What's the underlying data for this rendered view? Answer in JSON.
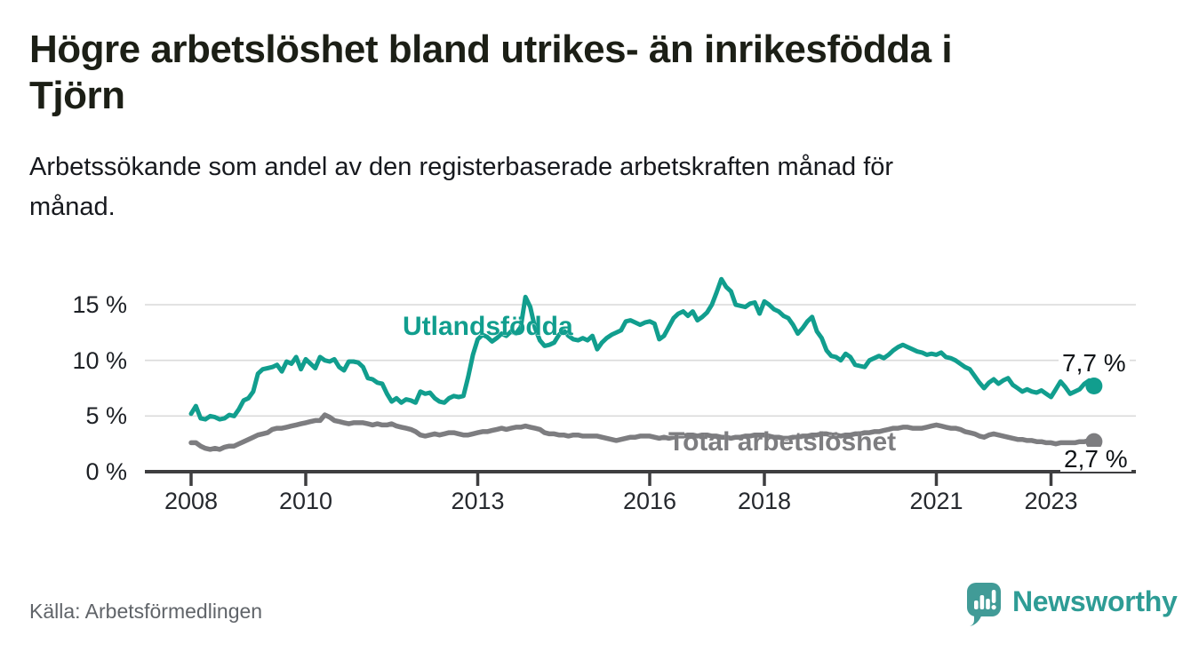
{
  "header": {
    "title_lines": [
      "Högre arbetslöshet bland utrikes- än inrikesfödda i",
      "Tjörn"
    ],
    "subtitle_lines": [
      "Arbetssökande som andel av den registerbaserade arbetskraften månad för",
      "månad."
    ]
  },
  "footer": {
    "source": "Källa: Arbetsförmedlingen",
    "brand": "Newsworthy",
    "logo_icon": "bar-chart-speech-bubble"
  },
  "colors": {
    "foreign_born_line": "#119E8E",
    "total_line": "#7D7D80",
    "grid": "#DBDBDB",
    "axis": "#3E3E40",
    "value_label_text": "#101418",
    "brand_icon_teal": "#419B97",
    "brand_text_teal": "#2E9C95"
  },
  "chart_data": {
    "type": "line",
    "title": "Högre arbetslöshet bland utrikes- än inrikesfödda i Tjörn",
    "subtitle": "Arbetssökande som andel av den registerbaserade arbetskraften månad för månad.",
    "unit": "%",
    "x_start": 2008.0,
    "x_step_years": 0.0833333,
    "xlim": [
      2008,
      2023.83
    ],
    "ylim": [
      0,
      18
    ],
    "grid": "horizontal",
    "grid_values": [
      5,
      10,
      15
    ],
    "legend_position": "inline-labels",
    "x_ticks": [
      2008,
      2010,
      2013,
      2016,
      2018,
      2021,
      2023
    ],
    "y_ticks": [
      {
        "value": 0,
        "label": "0 %"
      },
      {
        "value": 5,
        "label": "5 %"
      },
      {
        "value": 10,
        "label": "10 %"
      },
      {
        "value": 15,
        "label": "15 %"
      }
    ],
    "series": [
      {
        "name": "Utlandsfödda",
        "color": "#119E8E",
        "end_label": "7,7 %",
        "end_value": 7.7,
        "values": [
          5.2,
          5.9,
          4.8,
          4.7,
          5.0,
          4.9,
          4.7,
          4.8,
          5.1,
          5.0,
          5.6,
          6.4,
          6.6,
          7.2,
          8.8,
          9.2,
          9.3,
          9.4,
          9.6,
          9.0,
          9.9,
          9.7,
          10.3,
          9.2,
          10.1,
          9.7,
          9.3,
          10.3,
          10.0,
          9.9,
          10.1,
          9.4,
          9.1,
          9.9,
          9.9,
          9.8,
          9.4,
          8.4,
          8.3,
          8.0,
          7.9,
          7.0,
          6.3,
          6.6,
          6.2,
          6.5,
          6.4,
          6.2,
          7.2,
          7.0,
          7.1,
          6.6,
          6.3,
          6.2,
          6.6,
          6.8,
          6.7,
          6.8,
          8.5,
          10.5,
          11.9,
          12.3,
          12.1,
          11.7,
          12.0,
          12.4,
          12.2,
          12.6,
          12.4,
          13.0,
          15.7,
          14.8,
          12.9,
          11.8,
          11.3,
          11.4,
          11.6,
          12.3,
          12.7,
          12.2,
          11.9,
          11.8,
          12.0,
          11.8,
          12.2,
          11.0,
          11.6,
          12.0,
          12.3,
          12.5,
          12.7,
          13.5,
          13.6,
          13.4,
          13.2,
          13.4,
          13.5,
          13.3,
          11.9,
          12.2,
          13.0,
          13.8,
          14.2,
          14.4,
          14.0,
          14.4,
          13.6,
          13.9,
          14.3,
          15.0,
          16.1,
          17.3,
          16.6,
          16.2,
          15.0,
          14.9,
          14.8,
          15.1,
          15.2,
          14.2,
          15.3,
          15.0,
          14.6,
          14.4,
          14.0,
          13.8,
          13.2,
          12.4,
          12.9,
          13.5,
          13.9,
          12.6,
          12.0,
          10.9,
          10.4,
          10.3,
          10.0,
          10.6,
          10.3,
          9.6,
          9.5,
          9.4,
          10.0,
          10.2,
          10.4,
          10.2,
          10.5,
          10.9,
          11.2,
          11.4,
          11.2,
          11.0,
          10.8,
          10.7,
          10.5,
          10.6,
          10.5,
          10.7,
          10.3,
          10.2,
          10.0,
          9.7,
          9.4,
          9.2,
          8.6,
          8.0,
          7.5,
          8.0,
          8.3,
          7.9,
          8.2,
          8.4,
          7.8,
          7.5,
          7.2,
          7.4,
          7.2,
          7.1,
          7.3,
          7.0,
          6.7,
          7.4,
          8.1,
          7.6,
          7.0,
          7.2,
          7.4,
          7.9,
          8.2,
          7.7
        ]
      },
      {
        "name": "Total arbetslöshet",
        "color": "#7D7D80",
        "end_label": "2,7 %",
        "end_value": 2.7,
        "values": [
          2.6,
          2.6,
          2.3,
          2.1,
          2.0,
          2.1,
          2.0,
          2.2,
          2.3,
          2.3,
          2.5,
          2.7,
          2.9,
          3.1,
          3.3,
          3.4,
          3.5,
          3.8,
          3.9,
          3.9,
          4.0,
          4.1,
          4.2,
          4.3,
          4.4,
          4.5,
          4.6,
          4.6,
          5.1,
          4.9,
          4.6,
          4.5,
          4.4,
          4.3,
          4.4,
          4.4,
          4.4,
          4.3,
          4.2,
          4.3,
          4.2,
          4.2,
          4.3,
          4.1,
          4.0,
          3.9,
          3.8,
          3.6,
          3.3,
          3.2,
          3.3,
          3.4,
          3.3,
          3.4,
          3.5,
          3.5,
          3.4,
          3.3,
          3.3,
          3.4,
          3.5,
          3.6,
          3.6,
          3.7,
          3.8,
          3.9,
          3.8,
          3.9,
          4.0,
          4.0,
          4.1,
          4.0,
          3.9,
          3.8,
          3.5,
          3.4,
          3.4,
          3.3,
          3.3,
          3.2,
          3.3,
          3.3,
          3.2,
          3.2,
          3.2,
          3.2,
          3.1,
          3.0,
          2.9,
          2.8,
          2.9,
          3.0,
          3.1,
          3.1,
          3.2,
          3.2,
          3.2,
          3.1,
          3.0,
          3.1,
          3.0,
          3.1,
          3.2,
          3.2,
          3.3,
          3.3,
          3.2,
          3.3,
          3.3,
          3.2,
          3.2,
          3.1,
          3.1,
          3.0,
          3.1,
          3.1,
          3.2,
          3.2,
          3.3,
          3.3,
          3.3,
          3.2,
          3.1,
          3.1,
          3.0,
          3.0,
          3.1,
          3.1,
          3.2,
          3.2,
          3.3,
          3.3,
          3.4,
          3.4,
          3.3,
          3.3,
          3.2,
          3.3,
          3.3,
          3.4,
          3.4,
          3.5,
          3.5,
          3.6,
          3.6,
          3.7,
          3.8,
          3.9,
          3.9,
          4.0,
          4.0,
          3.9,
          3.9,
          3.9,
          4.0,
          4.1,
          4.2,
          4.1,
          4.0,
          3.9,
          3.9,
          3.8,
          3.6,
          3.5,
          3.4,
          3.2,
          3.1,
          3.3,
          3.4,
          3.3,
          3.2,
          3.1,
          3.0,
          2.9,
          2.9,
          2.8,
          2.8,
          2.7,
          2.7,
          2.6,
          2.6,
          2.5,
          2.6,
          2.6,
          2.6,
          2.6,
          2.7,
          2.7,
          2.8,
          2.7
        ]
      }
    ]
  }
}
